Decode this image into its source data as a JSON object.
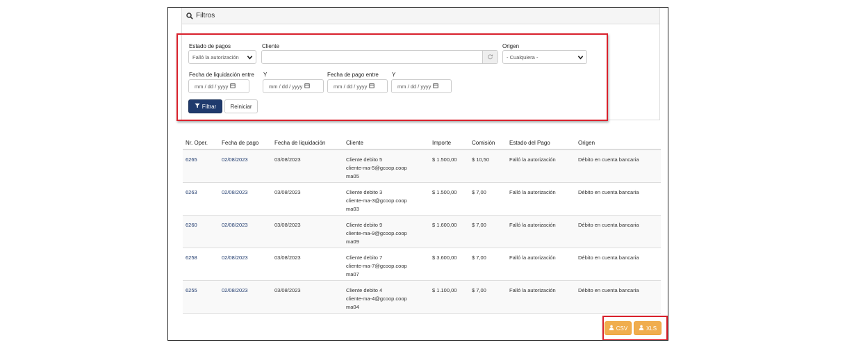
{
  "filters": {
    "title": "Filtros",
    "estado_label": "Estado de pagos",
    "estado_value": "Falló la autorización",
    "cliente_label": "Cliente",
    "cliente_value": "",
    "origen_label": "Origen",
    "origen_value": "- Cualquiera -",
    "fecha_liq_label": "Fecha de liquidación entre",
    "y_label_1": "Y",
    "fecha_pago_label": "Fecha de pago entre",
    "y_label_2": "Y",
    "date_placeholder": "mm / dd / yyyy",
    "filtrar_label": "Filtrar",
    "reiniciar_label": "Reiniciar"
  },
  "table": {
    "headers": [
      "Nr. Oper.",
      "Fecha de pago",
      "Fecha de liquidación",
      "Cliente",
      "Importe",
      "Comisión",
      "Estado del Pago",
      "Origen"
    ],
    "rows": [
      {
        "nr": "6265",
        "fecha_pago": "02/08/2023",
        "fecha_liq": "03/08/2023",
        "cliente_nombre": "Cliente debito 5",
        "cliente_email_1": "cliente-ma-5@gcoop.coop",
        "cliente_email_2": "ma05",
        "importe": "$ 1.500,00",
        "comision": "$ 10,50",
        "estado": "Falló la autorización",
        "origen": "Débito en cuenta bancaria"
      },
      {
        "nr": "6263",
        "fecha_pago": "02/08/2023",
        "fecha_liq": "03/08/2023",
        "cliente_nombre": "Cliente debito 3",
        "cliente_email_1": "cliente-ma-3@gcoop.coop",
        "cliente_email_2": "ma03",
        "importe": "$ 1.500,00",
        "comision": "$ 7,00",
        "estado": "Falló la autorización",
        "origen": "Débito en cuenta bancaria"
      },
      {
        "nr": "6260",
        "fecha_pago": "02/08/2023",
        "fecha_liq": "03/08/2023",
        "cliente_nombre": "Cliente debito 9",
        "cliente_email_1": "cliente-ma-9@gcoop.coop",
        "cliente_email_2": "ma09",
        "importe": "$ 1.600,00",
        "comision": "$ 7,00",
        "estado": "Falló la autorización",
        "origen": "Débito en cuenta bancaria"
      },
      {
        "nr": "6258",
        "fecha_pago": "02/08/2023",
        "fecha_liq": "03/08/2023",
        "cliente_nombre": "Cliente debito 7",
        "cliente_email_1": "cliente-ma-7@gcoop.coop",
        "cliente_email_2": "ma07",
        "importe": "$ 3.600,00",
        "comision": "$ 7,00",
        "estado": "Falló la autorización",
        "origen": "Débito en cuenta bancaria"
      },
      {
        "nr": "6255",
        "fecha_pago": "02/08/2023",
        "fecha_liq": "03/08/2023",
        "cliente_nombre": "Cliente debito 4",
        "cliente_email_1": "cliente-ma-4@gcoop.coop",
        "cliente_email_2": "ma04",
        "importe": "$ 1.100,00",
        "comision": "$ 7,00",
        "estado": "Falló la autorización",
        "origen": "Débito en cuenta bancaria"
      }
    ]
  },
  "export": {
    "csv_label": "CSV",
    "xls_label": "XLS"
  },
  "colors": {
    "primary": "#1f3a6d",
    "warning": "#f0ad4e",
    "highlight": "#d9212c"
  },
  "icons": [
    "search-icon",
    "chevron-down-icon",
    "refresh-icon",
    "calendar-icon",
    "filter-icon",
    "user-icon"
  ]
}
